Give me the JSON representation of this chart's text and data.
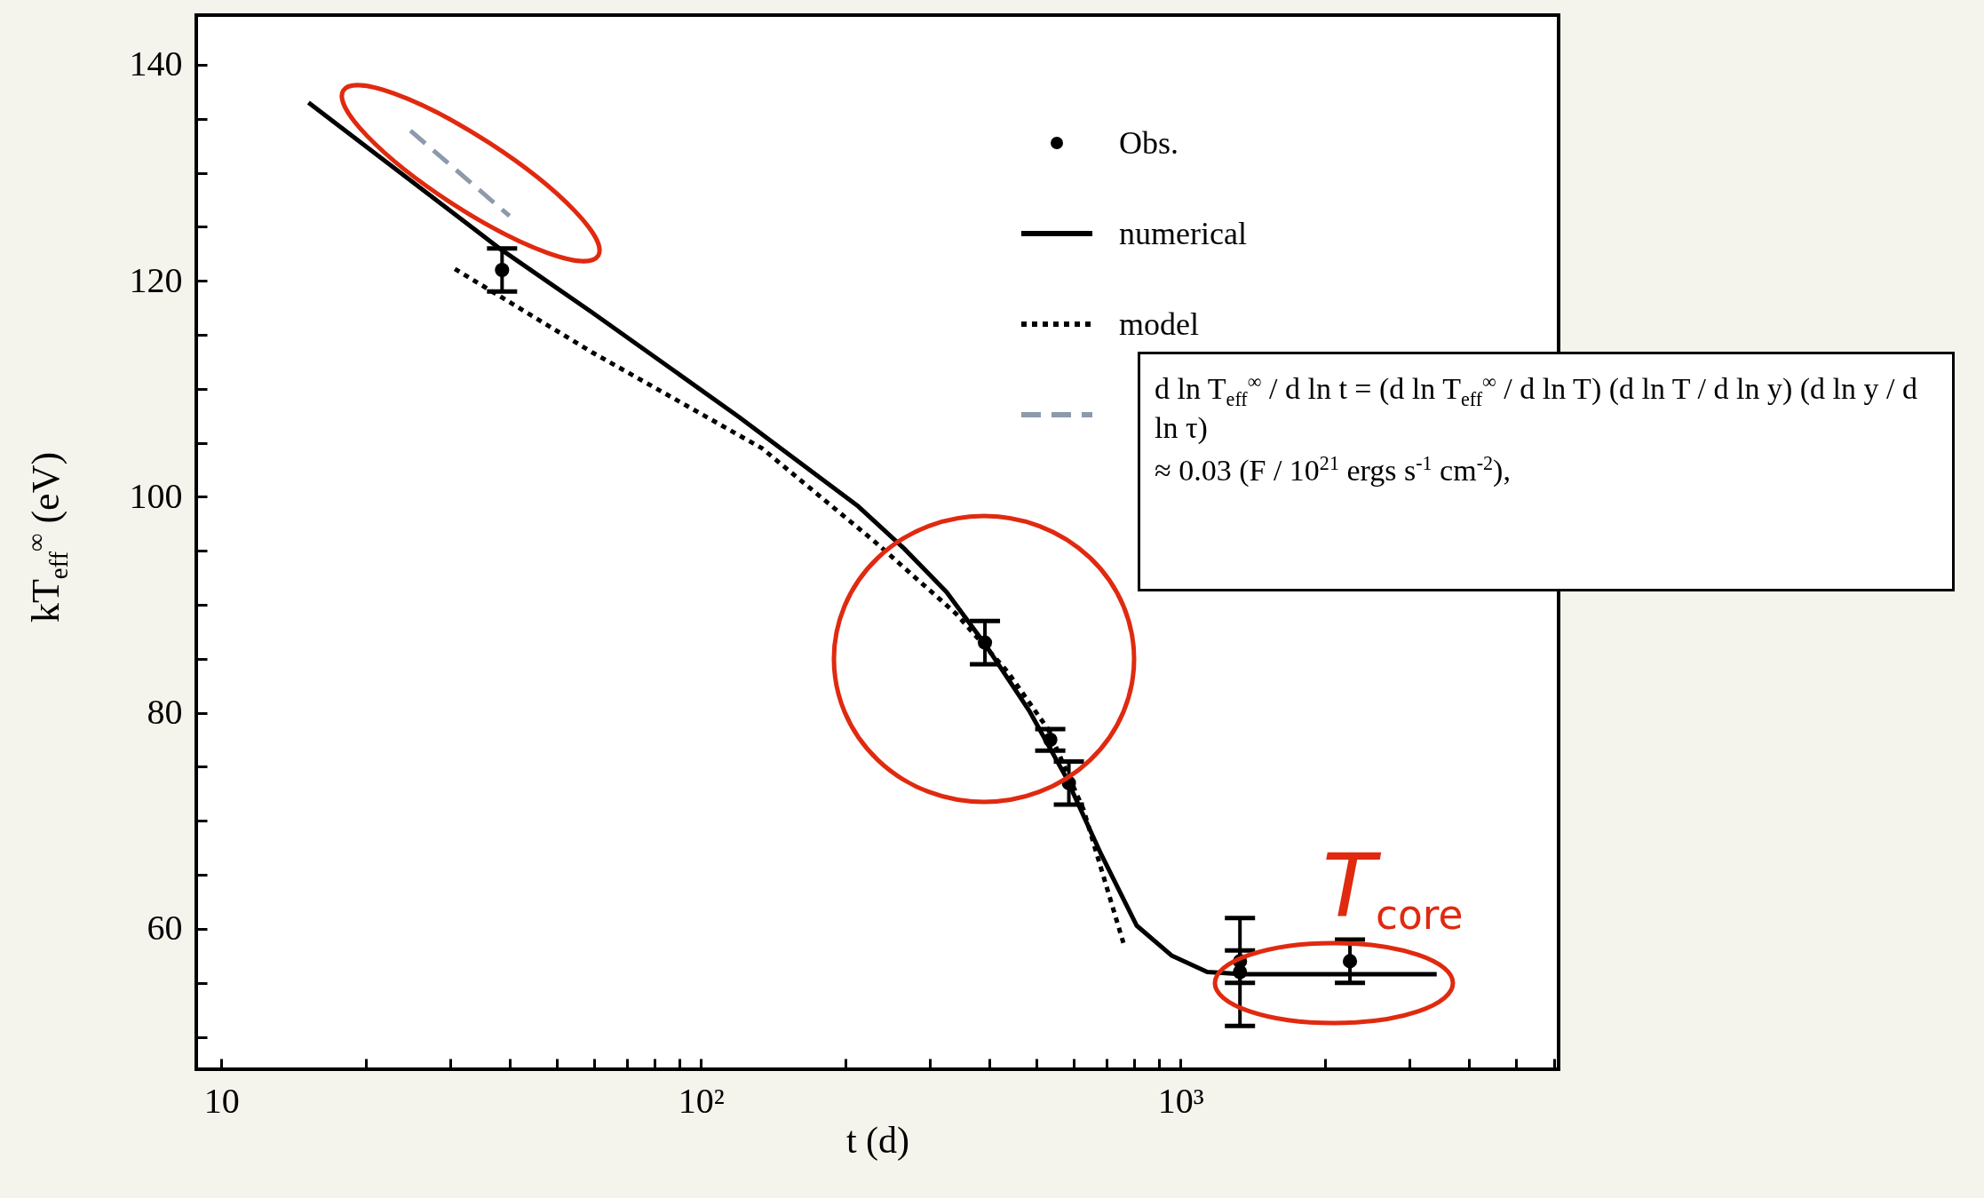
{
  "chart_data": {
    "type": "line",
    "xlabel": "t (d)",
    "ylabel": "kT$_{eff}$$^{∞}$ (eV)",
    "log": "x",
    "xlim": [
      8.87,
      6140
    ],
    "ylim": [
      47,
      144.6
    ],
    "xticks": [
      {
        "value": 10,
        "label": "10"
      },
      {
        "value": 20,
        "label": null
      },
      {
        "value": 30,
        "label": null
      },
      {
        "value": 40,
        "label": null
      },
      {
        "value": 50,
        "label": null
      },
      {
        "value": 60,
        "label": null
      },
      {
        "value": 70,
        "label": null
      },
      {
        "value": 80,
        "label": null
      },
      {
        "value": 90,
        "label": null
      },
      {
        "value": 100,
        "label": "10²"
      },
      {
        "value": 200,
        "label": null
      },
      {
        "value": 300,
        "label": null
      },
      {
        "value": 400,
        "label": null
      },
      {
        "value": 500,
        "label": null
      },
      {
        "value": 600,
        "label": null
      },
      {
        "value": 700,
        "label": null
      },
      {
        "value": 800,
        "label": null
      },
      {
        "value": 900,
        "label": null
      },
      {
        "value": 1000,
        "label": "10³"
      },
      {
        "value": 2000,
        "label": null
      },
      {
        "value": 3000,
        "label": null
      },
      {
        "value": 4000,
        "label": null
      },
      {
        "value": 5000,
        "label": null
      },
      {
        "value": 6000,
        "label": null
      }
    ],
    "yticks": [
      {
        "value": 50,
        "label": null
      },
      {
        "value": 55,
        "label": null
      },
      60,
      {
        "value": 65,
        "label": null
      },
      {
        "value": 70,
        "label": null
      },
      {
        "value": 75,
        "label": null
      },
      80,
      {
        "value": 85,
        "label": null
      },
      {
        "value": 90,
        "label": null
      },
      {
        "value": 95,
        "label": null
      },
      100,
      {
        "value": 105,
        "label": null
      },
      {
        "value": 110,
        "label": null
      },
      {
        "value": 115,
        "label": null
      },
      120,
      {
        "value": 125,
        "label": null
      },
      {
        "value": 130,
        "label": null
      },
      {
        "value": 135,
        "label": null
      },
      140
    ],
    "legend": "top right",
    "grid": false,
    "series": [
      {
        "name": "Obs.",
        "type": "scatter",
        "marker": "circle",
        "color": "#000000",
        "x": [
          38.5,
          391,
          535,
          585,
          1330,
          1330,
          2255
        ],
        "values": [
          121,
          86.5,
          77.5,
          73.5,
          56,
          57,
          57
        ],
        "errors": [
          2,
          2,
          1,
          2,
          5,
          [
            55,
            58
          ],
          2
        ]
      },
      {
        "name": "numerical",
        "type": "line",
        "line_style": "solid",
        "color": "#000000",
        "x": [
          15.2,
          38.3,
          59.2,
          120,
          166,
          213,
          264,
          325,
          392,
          485,
          576,
          683,
          810,
          960,
          1137,
          1350,
          3420
        ],
        "values": [
          136.5,
          122.9,
          117.1,
          107.4,
          102.7,
          99.1,
          95.3,
          91.2,
          86.3,
          80.1,
          74.1,
          66.9,
          60.3,
          57.5,
          56,
          55.8,
          55.8
        ]
      },
      {
        "name": "model",
        "type": "line",
        "line_style": "dotted",
        "color": "#000000",
        "x": [
          30.7,
          59.2,
          134,
          231,
          340,
          436,
          529,
          627,
          760
        ],
        "values": [
          121.1,
          113.4,
          104.5,
          95.8,
          89.2,
          83.8,
          78.5,
          71.1,
          58.7
        ]
      },
      {
        "type": "line",
        "line_style": "dashed",
        "color": "#8c9aab",
        "x": [
          24.8,
          39.9
        ],
        "values": [
          133.9,
          126
        ]
      }
    ],
    "annotations": [
      "T$_{core}$",
      "d ln T$_{eff}$$^{∞}$ / d ln t = (d ln T$_{eff}$$^{∞}$ / d ln T) (d ln T / d ln y) (d ln y / d ln τ)",
      "≈ 0.03 (F / 10$^{21}$ ergs s$^{-1}$ cm$^{-2}$),"
    ]
  }
}
